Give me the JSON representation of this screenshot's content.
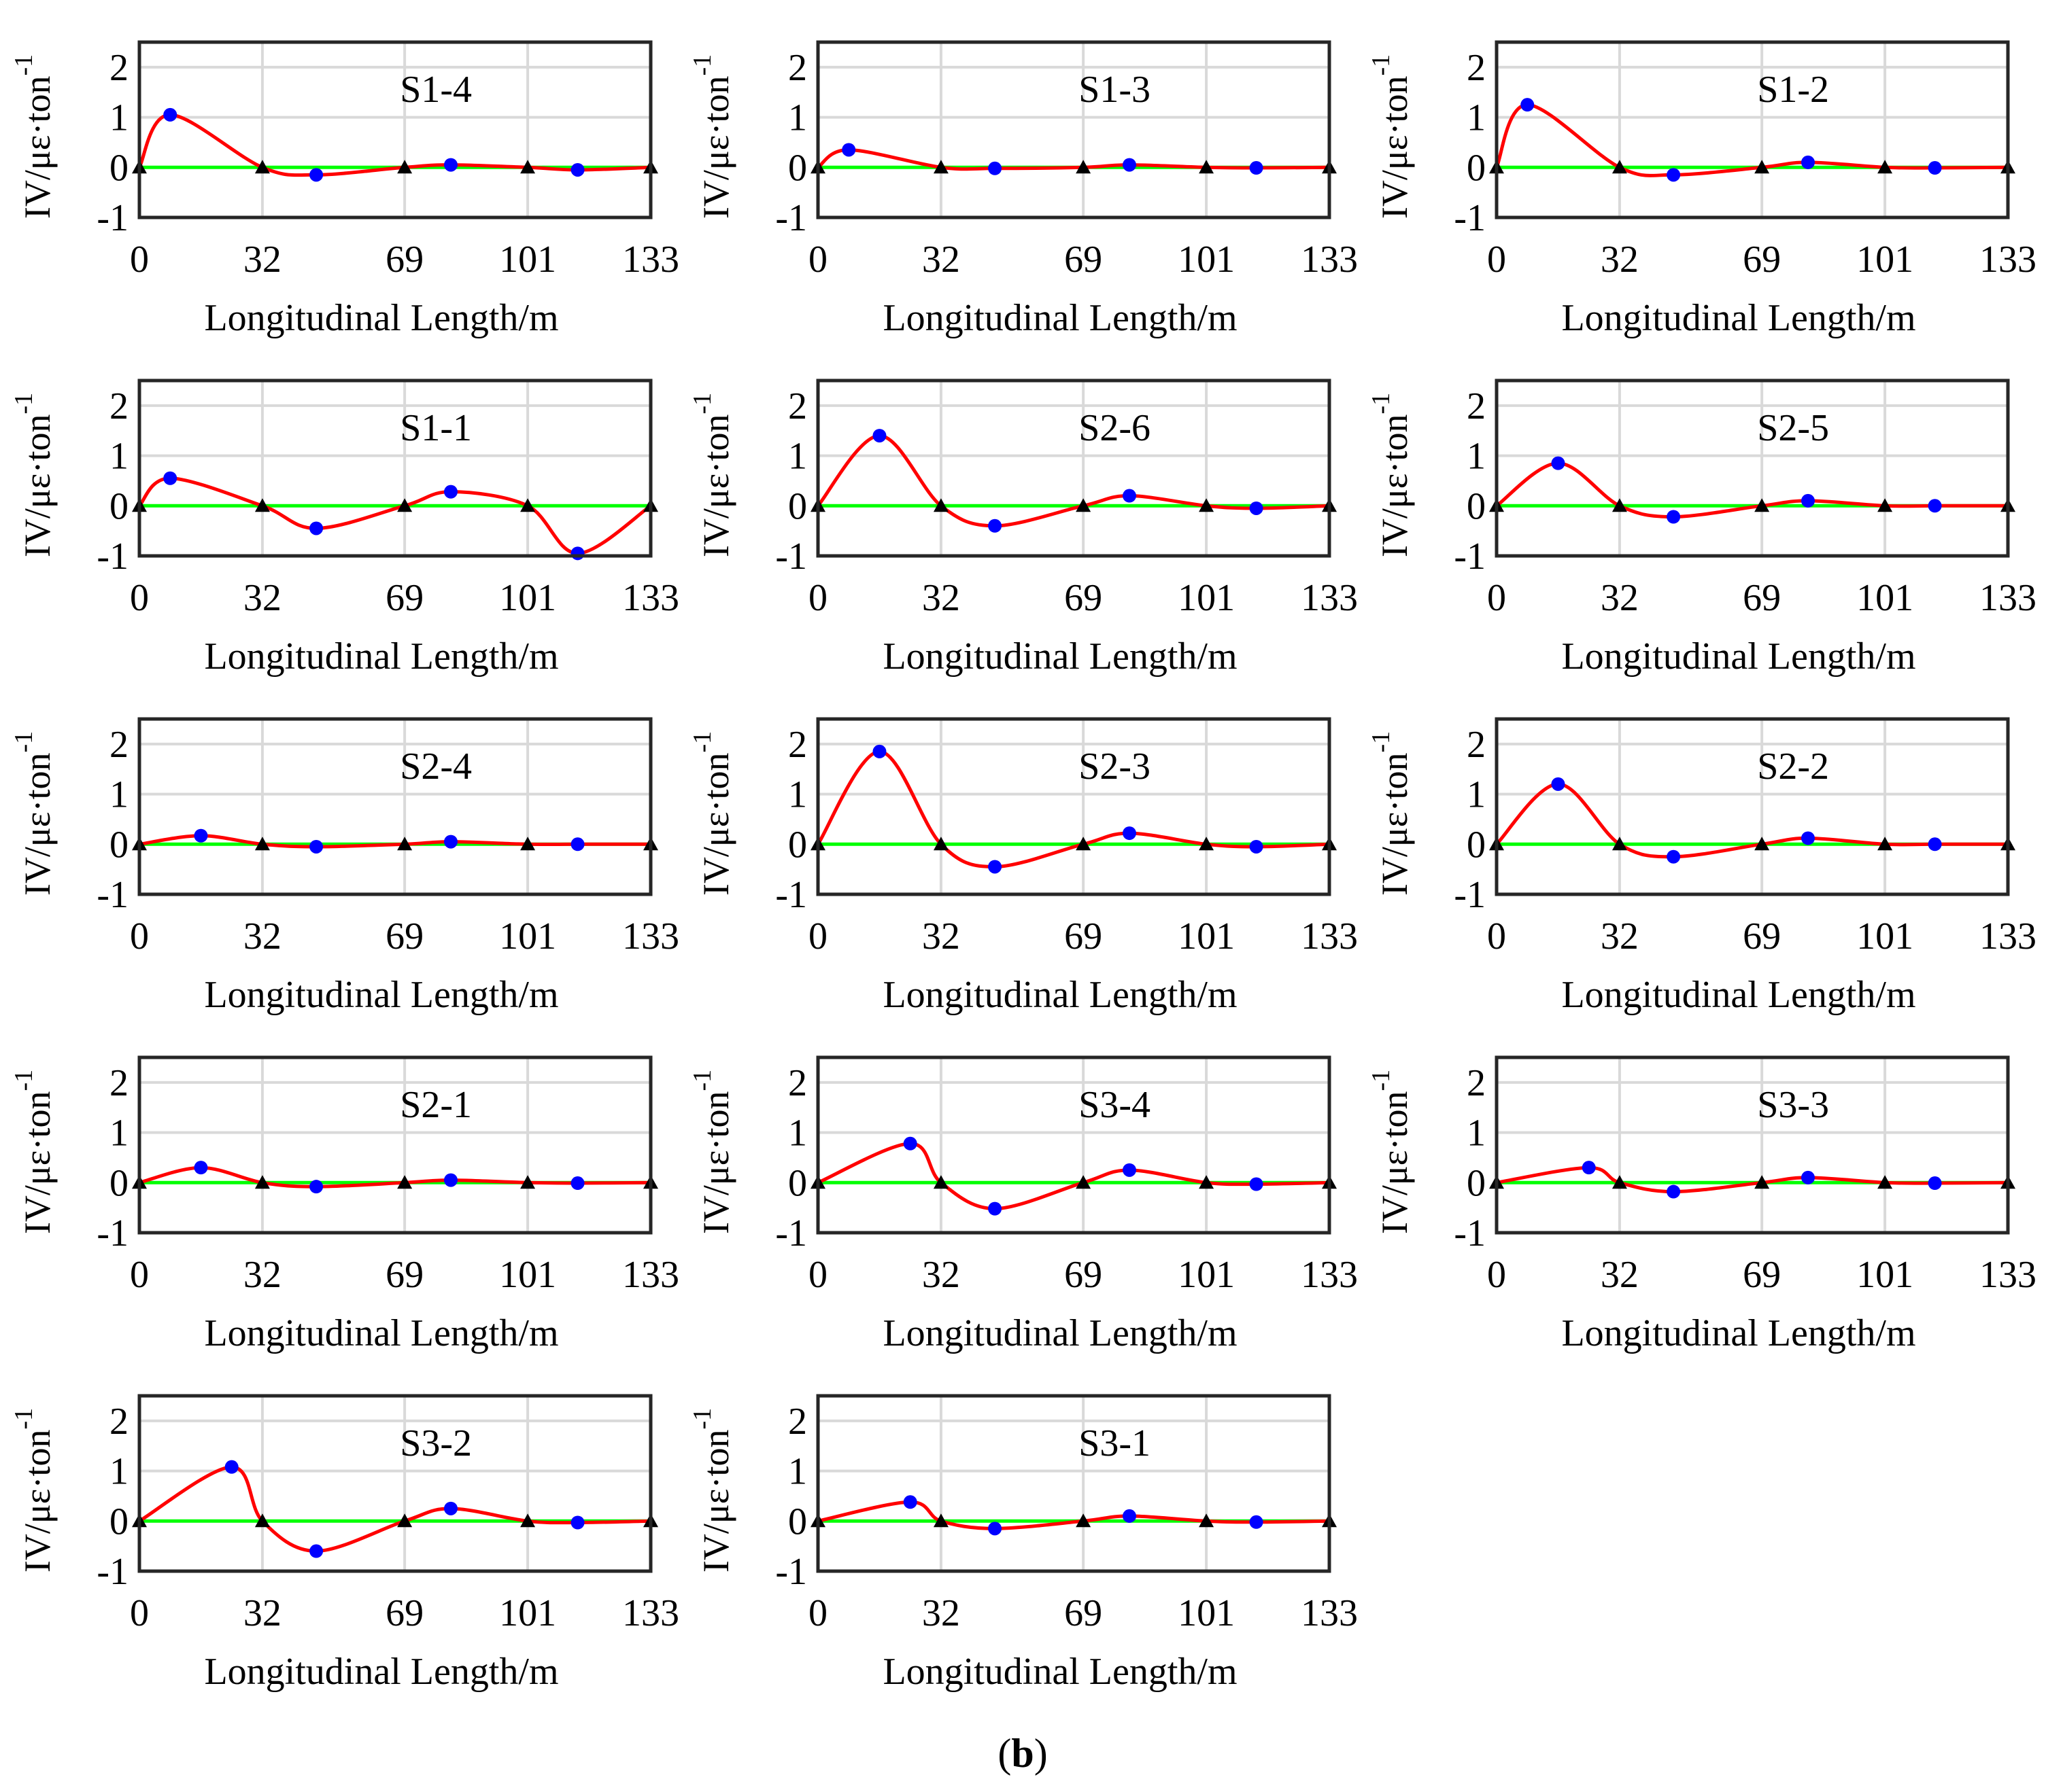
{
  "figure": {
    "caption": {
      "open": "(",
      "letter": "b",
      "close": ")"
    },
    "colors": {
      "curve": "#ff0000",
      "baseline": "#00ff00",
      "peak_marker": "#0000ff",
      "support_marker": "#000000",
      "grid": "#d9d9d9",
      "frame": "#262626"
    }
  },
  "chart_data": [
    {
      "type": "line",
      "title": "S1-4",
      "xlabel": "Longitudinal Length/m",
      "ylabel": "IV/με·ton",
      "ylabel_sup": "-1",
      "xticks": [
        0,
        32,
        69,
        101,
        133
      ],
      "yticks": [
        -1,
        0,
        1,
        2
      ],
      "xlim": [
        0,
        133
      ],
      "ylim": [
        -1,
        2.5
      ],
      "grid": true,
      "x": [
        0,
        8,
        32,
        46,
        69,
        81,
        101,
        114,
        133
      ],
      "y": [
        0,
        1.05,
        0,
        -0.15,
        0,
        0.05,
        0,
        -0.05,
        0
      ],
      "peaks": [
        [
          8,
          1.05
        ],
        [
          46,
          -0.15
        ],
        [
          81,
          0.05
        ],
        [
          114,
          -0.05
        ]
      ],
      "supports": [
        0,
        32,
        69,
        101,
        133
      ]
    },
    {
      "type": "line",
      "title": "S1-3",
      "xlabel": "Longitudinal Length/m",
      "ylabel": "IV/με·ton",
      "ylabel_sup": "-1",
      "xticks": [
        0,
        32,
        69,
        101,
        133
      ],
      "yticks": [
        -1,
        0,
        1,
        2
      ],
      "xlim": [
        0,
        133
      ],
      "ylim": [
        -1,
        2.5
      ],
      "grid": true,
      "x": [
        0,
        8,
        32,
        46,
        69,
        81,
        101,
        114,
        133
      ],
      "y": [
        0,
        0.35,
        0,
        -0.02,
        0,
        0.05,
        0,
        -0.01,
        0
      ],
      "peaks": [
        [
          8,
          0.35
        ],
        [
          46,
          -0.02
        ],
        [
          81,
          0.05
        ],
        [
          114,
          -0.01
        ]
      ],
      "supports": [
        0,
        32,
        69,
        101,
        133
      ]
    },
    {
      "type": "line",
      "title": "S1-2",
      "xlabel": "Longitudinal Length/m",
      "ylabel": "IV/με·ton",
      "ylabel_sup": "-1",
      "xticks": [
        0,
        32,
        69,
        101,
        133
      ],
      "yticks": [
        -1,
        0,
        1,
        2
      ],
      "xlim": [
        0,
        133
      ],
      "ylim": [
        -1,
        2.5
      ],
      "grid": true,
      "x": [
        0,
        8,
        32,
        46,
        69,
        81,
        101,
        114,
        133
      ],
      "y": [
        0,
        1.25,
        0,
        -0.15,
        0,
        0.1,
        0,
        -0.01,
        0
      ],
      "peaks": [
        [
          8,
          1.25
        ],
        [
          46,
          -0.15
        ],
        [
          81,
          0.1
        ],
        [
          114,
          -0.01
        ]
      ],
      "supports": [
        0,
        32,
        69,
        101,
        133
      ]
    },
    {
      "type": "line",
      "title": "S1-1",
      "xlabel": "Longitudinal Length/m",
      "ylabel": "IV/με·ton",
      "ylabel_sup": "-1",
      "xticks": [
        0,
        32,
        69,
        101,
        133
      ],
      "yticks": [
        -1,
        0,
        1,
        2
      ],
      "xlim": [
        0,
        133
      ],
      "ylim": [
        -1,
        2.5
      ],
      "grid": true,
      "x": [
        0,
        8,
        32,
        46,
        69,
        81,
        101,
        114,
        133
      ],
      "y": [
        0,
        0.55,
        0,
        -0.45,
        0,
        0.28,
        0,
        -0.95,
        0
      ],
      "peaks": [
        [
          8,
          0.55
        ],
        [
          46,
          -0.45
        ],
        [
          81,
          0.28
        ],
        [
          114,
          -0.95
        ]
      ],
      "supports": [
        0,
        32,
        69,
        101,
        133
      ]
    },
    {
      "type": "line",
      "title": "S2-6",
      "xlabel": "Longitudinal Length/m",
      "ylabel": "IV/με·ton",
      "ylabel_sup": "-1",
      "xticks": [
        0,
        32,
        69,
        101,
        133
      ],
      "yticks": [
        -1,
        0,
        1,
        2
      ],
      "xlim": [
        0,
        133
      ],
      "ylim": [
        -1,
        2.5
      ],
      "grid": true,
      "x": [
        0,
        16,
        32,
        46,
        69,
        81,
        101,
        114,
        133
      ],
      "y": [
        0,
        1.4,
        0,
        -0.4,
        0,
        0.2,
        0,
        -0.05,
        0
      ],
      "peaks": [
        [
          16,
          1.4
        ],
        [
          46,
          -0.4
        ],
        [
          81,
          0.2
        ],
        [
          114,
          -0.05
        ]
      ],
      "supports": [
        0,
        32,
        69,
        101,
        133
      ]
    },
    {
      "type": "line",
      "title": "S2-5",
      "xlabel": "Longitudinal Length/m",
      "ylabel": "IV/με·ton",
      "ylabel_sup": "-1",
      "xticks": [
        0,
        32,
        69,
        101,
        133
      ],
      "yticks": [
        -1,
        0,
        1,
        2
      ],
      "xlim": [
        0,
        133
      ],
      "ylim": [
        -1,
        2.5
      ],
      "grid": true,
      "x": [
        0,
        16,
        32,
        46,
        69,
        81,
        101,
        114,
        133
      ],
      "y": [
        0,
        0.85,
        0,
        -0.22,
        0,
        0.1,
        0,
        0.0,
        0
      ],
      "peaks": [
        [
          16,
          0.85
        ],
        [
          46,
          -0.22
        ],
        [
          81,
          0.1
        ],
        [
          114,
          0.0
        ]
      ],
      "supports": [
        0,
        32,
        69,
        101,
        133
      ]
    },
    {
      "type": "line",
      "title": "S2-4",
      "xlabel": "Longitudinal Length/m",
      "ylabel": "IV/με·ton",
      "ylabel_sup": "-1",
      "xticks": [
        0,
        32,
        69,
        101,
        133
      ],
      "yticks": [
        -1,
        0,
        1,
        2
      ],
      "xlim": [
        0,
        133
      ],
      "ylim": [
        -1,
        2.5
      ],
      "grid": true,
      "x": [
        0,
        16,
        32,
        46,
        69,
        81,
        101,
        114,
        133
      ],
      "y": [
        0,
        0.17,
        0,
        -0.05,
        0,
        0.05,
        0,
        0.0,
        0
      ],
      "peaks": [
        [
          16,
          0.17
        ],
        [
          46,
          -0.05
        ],
        [
          81,
          0.05
        ],
        [
          114,
          0.0
        ]
      ],
      "supports": [
        0,
        32,
        69,
        101,
        133
      ]
    },
    {
      "type": "line",
      "title": "S2-3",
      "xlabel": "Longitudinal Length/m",
      "ylabel": "IV/με·ton",
      "ylabel_sup": "-1",
      "xticks": [
        0,
        32,
        69,
        101,
        133
      ],
      "yticks": [
        -1,
        0,
        1,
        2
      ],
      "xlim": [
        0,
        133
      ],
      "ylim": [
        -1,
        2.5
      ],
      "grid": true,
      "x": [
        0,
        16,
        32,
        46,
        69,
        81,
        101,
        114,
        133
      ],
      "y": [
        0,
        1.85,
        0,
        -0.45,
        0,
        0.22,
        0,
        -0.05,
        0
      ],
      "peaks": [
        [
          16,
          1.85
        ],
        [
          46,
          -0.45
        ],
        [
          81,
          0.22
        ],
        [
          114,
          -0.05
        ]
      ],
      "supports": [
        0,
        32,
        69,
        101,
        133
      ]
    },
    {
      "type": "line",
      "title": "S2-2",
      "xlabel": "Longitudinal Length/m",
      "ylabel": "IV/με·ton",
      "ylabel_sup": "-1",
      "xticks": [
        0,
        32,
        69,
        101,
        133
      ],
      "yticks": [
        -1,
        0,
        1,
        2
      ],
      "xlim": [
        0,
        133
      ],
      "ylim": [
        -1,
        2.5
      ],
      "grid": true,
      "x": [
        0,
        16,
        32,
        46,
        69,
        81,
        101,
        114,
        133
      ],
      "y": [
        0,
        1.2,
        0,
        -0.25,
        0,
        0.12,
        0,
        0.0,
        0
      ],
      "peaks": [
        [
          16,
          1.2
        ],
        [
          46,
          -0.25
        ],
        [
          81,
          0.12
        ],
        [
          114,
          0.0
        ]
      ],
      "supports": [
        0,
        32,
        69,
        101,
        133
      ]
    },
    {
      "type": "line",
      "title": "S2-1",
      "xlabel": "Longitudinal Length/m",
      "ylabel": "IV/με·ton",
      "ylabel_sup": "-1",
      "xticks": [
        0,
        32,
        69,
        101,
        133
      ],
      "yticks": [
        -1,
        0,
        1,
        2
      ],
      "xlim": [
        0,
        133
      ],
      "ylim": [
        -1,
        2.5
      ],
      "grid": true,
      "x": [
        0,
        16,
        32,
        46,
        69,
        81,
        101,
        114,
        133
      ],
      "y": [
        0,
        0.3,
        0,
        -0.08,
        0,
        0.05,
        0,
        -0.01,
        0
      ],
      "peaks": [
        [
          16,
          0.3
        ],
        [
          46,
          -0.08
        ],
        [
          81,
          0.05
        ],
        [
          114,
          -0.01
        ]
      ],
      "supports": [
        0,
        32,
        69,
        101,
        133
      ]
    },
    {
      "type": "line",
      "title": "S3-4",
      "xlabel": "Longitudinal Length/m",
      "ylabel": "IV/με·ton",
      "ylabel_sup": "-1",
      "xticks": [
        0,
        32,
        69,
        101,
        133
      ],
      "yticks": [
        -1,
        0,
        1,
        2
      ],
      "xlim": [
        0,
        133
      ],
      "ylim": [
        -1,
        2.5
      ],
      "grid": true,
      "x": [
        0,
        24,
        32,
        46,
        69,
        81,
        101,
        114,
        133
      ],
      "y": [
        0,
        0.78,
        0,
        -0.52,
        0,
        0.25,
        0,
        -0.03,
        0
      ],
      "peaks": [
        [
          24,
          0.78
        ],
        [
          46,
          -0.52
        ],
        [
          81,
          0.25
        ],
        [
          114,
          -0.03
        ]
      ],
      "supports": [
        0,
        32,
        69,
        101,
        133
      ]
    },
    {
      "type": "line",
      "title": "S3-3",
      "xlabel": "Longitudinal Length/m",
      "ylabel": "IV/με·ton",
      "ylabel_sup": "-1",
      "xticks": [
        0,
        32,
        69,
        101,
        133
      ],
      "yticks": [
        -1,
        0,
        1,
        2
      ],
      "xlim": [
        0,
        133
      ],
      "ylim": [
        -1,
        2.5
      ],
      "grid": true,
      "x": [
        0,
        24,
        32,
        46,
        69,
        81,
        101,
        114,
        133
      ],
      "y": [
        0,
        0.3,
        0,
        -0.18,
        0,
        0.1,
        0,
        -0.01,
        0
      ],
      "peaks": [
        [
          24,
          0.3
        ],
        [
          46,
          -0.18
        ],
        [
          81,
          0.1
        ],
        [
          114,
          -0.01
        ]
      ],
      "supports": [
        0,
        32,
        69,
        101,
        133
      ]
    },
    {
      "type": "line",
      "title": "S3-2",
      "xlabel": "Longitudinal Length/m",
      "ylabel": "IV/με·ton",
      "ylabel_sup": "-1",
      "xticks": [
        0,
        32,
        69,
        101,
        133
      ],
      "yticks": [
        -1,
        0,
        1,
        2
      ],
      "xlim": [
        0,
        133
      ],
      "ylim": [
        -1,
        2.5
      ],
      "grid": true,
      "x": [
        0,
        24,
        32,
        46,
        69,
        81,
        101,
        114,
        133
      ],
      "y": [
        0,
        1.08,
        0,
        -0.6,
        0,
        0.25,
        0,
        -0.03,
        0
      ],
      "peaks": [
        [
          24,
          1.08
        ],
        [
          46,
          -0.6
        ],
        [
          81,
          0.25
        ],
        [
          114,
          -0.03
        ]
      ],
      "supports": [
        0,
        32,
        69,
        101,
        133
      ]
    },
    {
      "type": "line",
      "title": "S3-1",
      "xlabel": "Longitudinal Length/m",
      "ylabel": "IV/με·ton",
      "ylabel_sup": "-1",
      "xticks": [
        0,
        32,
        69,
        101,
        133
      ],
      "yticks": [
        -1,
        0,
        1,
        2
      ],
      "xlim": [
        0,
        133
      ],
      "ylim": [
        -1,
        2.5
      ],
      "grid": true,
      "x": [
        0,
        24,
        32,
        46,
        69,
        81,
        101,
        114,
        133
      ],
      "y": [
        0,
        0.38,
        0,
        -0.15,
        0,
        0.1,
        0,
        -0.02,
        0
      ],
      "peaks": [
        [
          24,
          0.38
        ],
        [
          46,
          -0.15
        ],
        [
          81,
          0.1
        ],
        [
          114,
          -0.02
        ]
      ],
      "supports": [
        0,
        32,
        69,
        101,
        133
      ]
    }
  ]
}
